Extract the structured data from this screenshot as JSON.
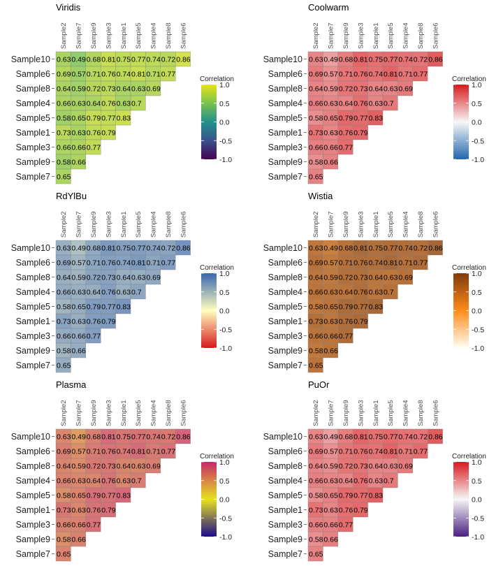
{
  "chart_data": [
    {
      "type": "heatmap",
      "title": "Viridis",
      "legend_title": "Correlation",
      "legend_ticks": [
        1.0,
        0.5,
        0.0,
        -0.5,
        -1.0
      ],
      "range": [
        -1,
        1
      ],
      "color_stops": [
        [
          -1,
          "#440154"
        ],
        [
          -0.5,
          "#3b528b"
        ],
        [
          0,
          "#21908c"
        ],
        [
          0.5,
          "#7ac14f"
        ],
        [
          1,
          "#e6e419"
        ]
      ]
    },
    {
      "type": "heatmap",
      "title": "Coolwarm",
      "legend_title": "Correlation",
      "legend_ticks": [
        1.0,
        0.5,
        0.0,
        -0.5,
        -1.0
      ],
      "range": [
        -1,
        1
      ],
      "color_stops": [
        [
          -1,
          "#2166ac"
        ],
        [
          0,
          "#f7f7f7"
        ],
        [
          1,
          "#d7191c"
        ]
      ]
    },
    {
      "type": "heatmap",
      "title": "RdYlBu",
      "legend_title": "Correlation",
      "legend_ticks": [
        1.0,
        0.5,
        0.0,
        -0.5,
        -1.0
      ],
      "range": [
        -1,
        1
      ],
      "color_stops": [
        [
          -1,
          "#d7191c"
        ],
        [
          0,
          "#ffffbf"
        ],
        [
          1,
          "#3a65ad"
        ]
      ]
    },
    {
      "type": "heatmap",
      "title": "Wistia",
      "legend_title": "Correlation",
      "legend_ticks": [
        1.0,
        0.5,
        0.0,
        -0.5,
        -1.0
      ],
      "range": [
        -1,
        1
      ],
      "color_stops": [
        [
          -1,
          "#fffff5"
        ],
        [
          0,
          "#ff8c1a"
        ],
        [
          1,
          "#7f3a0c"
        ]
      ]
    },
    {
      "type": "heatmap",
      "title": "Plasma",
      "legend_title": "Correlation",
      "legend_ticks": [
        1.0,
        0.5,
        0.0,
        -0.5,
        -1.0
      ],
      "range": [
        -1,
        1
      ],
      "color_stops": [
        [
          -1,
          "#1b0a8c"
        ],
        [
          0,
          "#e6e21e"
        ],
        [
          1,
          "#c7286a"
        ]
      ]
    },
    {
      "type": "heatmap",
      "title": "PuOr",
      "legend_title": "Correlation",
      "legend_ticks": [
        1.0,
        0.5,
        0.0,
        -0.5,
        -1.0
      ],
      "range": [
        -1,
        1
      ],
      "color_stops": [
        [
          -1,
          "#4b1e80"
        ],
        [
          0,
          "#f7f7f7"
        ],
        [
          1,
          "#d7191c"
        ]
      ]
    }
  ],
  "matrix": {
    "columns": [
      "Sample2",
      "Sample7",
      "Sample9",
      "Sample3",
      "Sample1",
      "Sample5",
      "Sample4",
      "Sample8",
      "Sample6"
    ],
    "rows": [
      "Sample10",
      "Sample6",
      "Sample8",
      "Sample4",
      "Sample5",
      "Sample1",
      "Sample3",
      "Sample9",
      "Sample7"
    ],
    "values": [
      [
        "0.63",
        "0.49",
        "0.68",
        "0.81",
        "0.75",
        "0.77",
        "0.74",
        "0.72",
        "0.86"
      ],
      [
        "0.69",
        "0.57",
        "0.71",
        "0.76",
        "0.74",
        "0.81",
        "0.71",
        "0.77"
      ],
      [
        "0.64",
        "0.59",
        "0.72",
        "0.73",
        "0.64",
        "0.63",
        "0.69"
      ],
      [
        "0.66",
        "0.63",
        "0.64",
        "0.76",
        "0.63",
        "0.7"
      ],
      [
        "0.58",
        "0.65",
        "0.79",
        "0.77",
        "0.83"
      ],
      [
        "0.73",
        "0.63",
        "0.76",
        "0.79"
      ],
      [
        "0.66",
        "0.66",
        "0.77"
      ],
      [
        "0.58",
        "0.66"
      ],
      [
        "0.65"
      ]
    ]
  }
}
